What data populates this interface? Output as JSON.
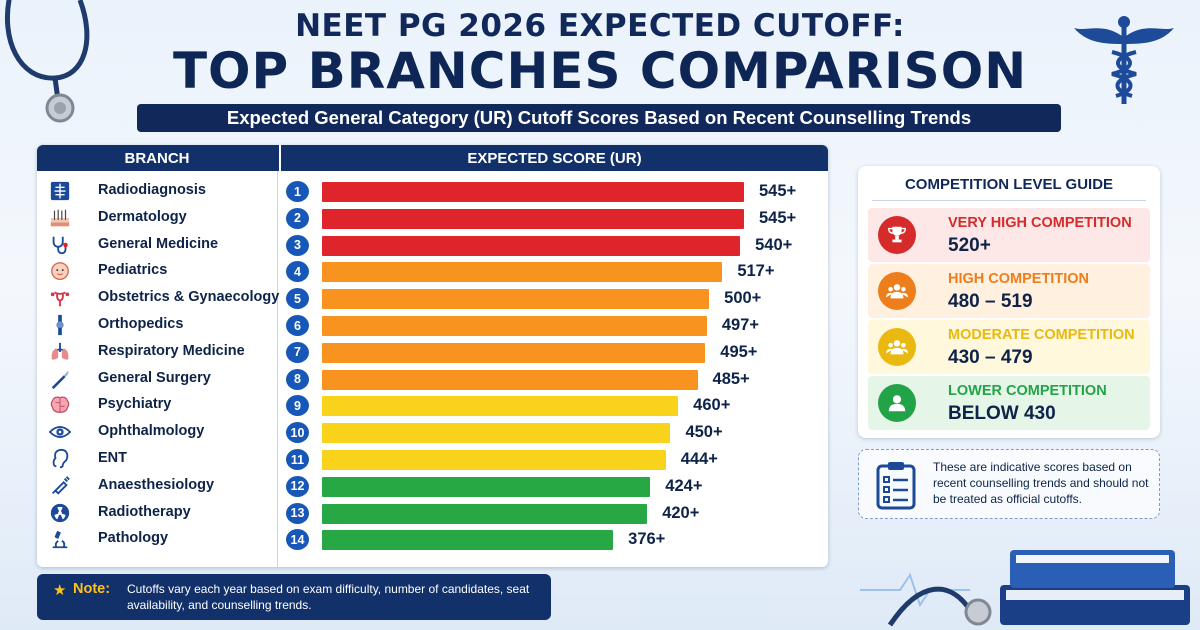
{
  "title_line1": "NEET PG 2026 EXPECTED CUTOFF:",
  "title_line2": "TOP BRANCHES COMPARISON",
  "subtitle": "Expected General Category (UR) Cutoff Scores Based on Recent Counselling Trends",
  "table_headers": {
    "branch": "BRANCH",
    "score": "EXPECTED SCORE (UR)"
  },
  "chart_data": {
    "type": "bar",
    "orientation": "horizontal",
    "title": "TOP BRANCHES COMPARISON",
    "xlabel": "EXPECTED SCORE (UR)",
    "ylabel": "BRANCH",
    "categories": [
      "Radiodiagnosis",
      "Dermatology",
      "General Medicine",
      "Pediatrics",
      "Obstetrics & Gynaecology",
      "Orthopedics",
      "Respiratory Medicine",
      "General Surgery",
      "Psychiatry",
      "Ophthalmology",
      "ENT",
      "Anaesthesiology",
      "Radiotherapy",
      "Pathology"
    ],
    "values": [
      545,
      545,
      540,
      517,
      500,
      497,
      495,
      485,
      460,
      450,
      444,
      424,
      420,
      376
    ],
    "ranks": [
      "1",
      "2",
      "3",
      "4",
      "5",
      "6",
      "7",
      "8",
      "9",
      "10",
      "11",
      "12",
      "13",
      "14"
    ],
    "value_labels": [
      "545+",
      "545+",
      "540+",
      "517+",
      "500+",
      "497+",
      "495+",
      "485+",
      "460+",
      "450+",
      "444+",
      "424+",
      "420+",
      "376+"
    ],
    "icons": [
      "xray-icon",
      "skin-icon",
      "stethoscope-icon",
      "baby-icon",
      "uterus-icon",
      "bone-joint-icon",
      "lungs-icon",
      "scalpel-icon",
      "brain-icon",
      "eye-icon",
      "ear-icon",
      "syringe-icon",
      "radiation-icon",
      "microscope-icon"
    ],
    "bar_colors": [
      "#e0242c",
      "#e0242c",
      "#e0242c",
      "#f7931e",
      "#f7931e",
      "#f7931e",
      "#f7931e",
      "#f7931e",
      "#f9d21c",
      "#f9d21c",
      "#f9d21c",
      "#27a845",
      "#27a845",
      "#27a845"
    ]
  },
  "competition_guide": {
    "title": "COMPETITION LEVEL GUIDE",
    "levels": [
      {
        "name": "VERY HIGH COMPETITION",
        "range": "520+",
        "color": "#d62b2b",
        "bg": "#fde7e7",
        "icon": "trophy-icon"
      },
      {
        "name": "HIGH COMPETITION",
        "range": "480 – 519",
        "color": "#ee7d1c",
        "bg": "#fff0e0",
        "icon": "group-icon"
      },
      {
        "name": "MODERATE COMPETITION",
        "range": "430 – 479",
        "color": "#e9b90f",
        "bg": "#fff8dc",
        "icon": "group-icon"
      },
      {
        "name": "LOWER COMPETITION",
        "range": "BELOW 430",
        "color": "#23a347",
        "bg": "#e5f6e8",
        "icon": "person-icon"
      }
    ]
  },
  "disclaimer": "These are indicative scores based on recent counselling trends and should not be treated as official cutoffs.",
  "note": {
    "label": "Note:",
    "text": "Cutoffs vary each year based on exam difficulty, number of candidates, seat availability, and counselling trends."
  },
  "colors": {
    "navy": "#10285a",
    "rank_blue": "#1757b8"
  }
}
